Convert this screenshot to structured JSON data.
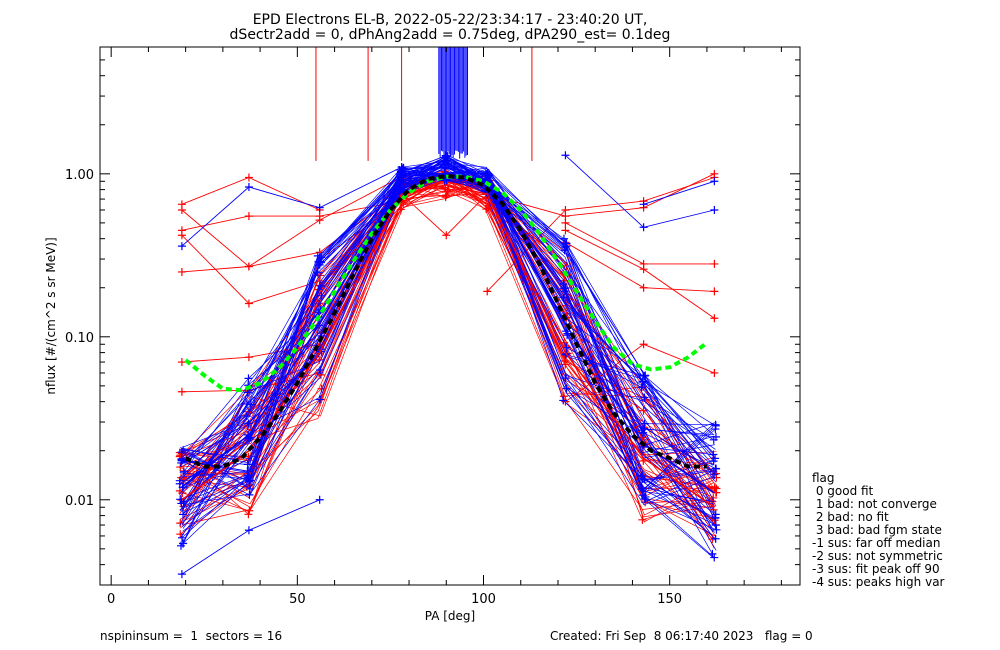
{
  "title_lines": [
    "EPD Electrons EL-B, 2022-05-22/23:34:17 - 23:40:20 UT,",
    "dSectr2add = 0, dPhAng2add = 0.75deg, dPA290_est=   0.1deg"
  ],
  "legend": {
    "title": "flag",
    "items": [
      " 0 good fit",
      " 1 bad: not converge",
      " 2 bad: no fit",
      " 3 bad: bad fgm state",
      "-1 sus: far off median",
      "-2 sus: not symmetric",
      "-3 sus: fit peak off 90",
      "-4 sus: peaks high var"
    ]
  },
  "footer": {
    "left": "nspininsum =  1  sectors = 16",
    "right": "Created: Fri Sep  8 06:17:40 2023   flag = 0"
  },
  "colors": {
    "red": "#ff0000",
    "blue": "#0000ff",
    "green": "#00ff00",
    "black": "#000000"
  },
  "chart_data": {
    "type": "line",
    "xlabel": "PA [deg]",
    "ylabel": "nflux [#/(cm^2 s sr MeV)]",
    "xlim": [
      -3,
      185
    ],
    "ylim": [
      0.003,
      6
    ],
    "yscale": "log",
    "xticks": [
      0,
      50,
      100,
      150
    ],
    "ytick_labels": [
      "0.01",
      "0.10",
      "1.00"
    ],
    "yticks": [
      0.01,
      0.1,
      1.0
    ],
    "pa_sectors": [
      19,
      37,
      56,
      78,
      90,
      101,
      122,
      143,
      162
    ],
    "series": [
      {
        "name_key": "median_blue",
        "color": "blue",
        "x": [
          19,
          37,
          56,
          78,
          90,
          101,
          122,
          143,
          162
        ],
        "y": [
          0.012,
          0.025,
          0.12,
          0.9,
          0.95,
          0.9,
          0.12,
          0.022,
          0.011
        ]
      },
      {
        "name_key": "median_red",
        "color": "red",
        "x": [
          19,
          37,
          56,
          78,
          90,
          101,
          122,
          143,
          162
        ],
        "y": [
          0.01,
          0.02,
          0.08,
          0.75,
          0.85,
          0.75,
          0.08,
          0.018,
          0.009
        ]
      },
      {
        "name_key": "fit_green",
        "color": "green",
        "style": "dashed",
        "x": [
          20,
          25,
          30,
          35,
          40,
          45,
          50,
          55,
          60,
          65,
          70,
          75,
          80,
          85,
          90,
          95,
          100,
          105,
          110,
          115,
          120,
          125,
          130,
          135,
          140,
          145,
          150,
          155,
          160
        ],
        "y": [
          0.072,
          0.058,
          0.048,
          0.047,
          0.052,
          0.064,
          0.086,
          0.125,
          0.19,
          0.29,
          0.43,
          0.6,
          0.77,
          0.9,
          0.96,
          0.96,
          0.9,
          0.77,
          0.6,
          0.43,
          0.29,
          0.19,
          0.125,
          0.086,
          0.068,
          0.063,
          0.065,
          0.075,
          0.092
        ]
      },
      {
        "name_key": "fit_black",
        "color": "black",
        "style": "dashed",
        "x": [
          20,
          25,
          30,
          35,
          40,
          45,
          50,
          55,
          60,
          65,
          70,
          75,
          80,
          85,
          90,
          95,
          100,
          105,
          110,
          115,
          120,
          125,
          130,
          135,
          140,
          145,
          150,
          155,
          160
        ],
        "y": [
          0.018,
          0.016,
          0.016,
          0.018,
          0.024,
          0.034,
          0.052,
          0.085,
          0.14,
          0.24,
          0.4,
          0.6,
          0.8,
          0.93,
          0.97,
          0.95,
          0.85,
          0.66,
          0.45,
          0.28,
          0.16,
          0.09,
          0.052,
          0.034,
          0.025,
          0.02,
          0.018,
          0.016,
          0.016
        ]
      }
    ],
    "spread": {
      "red": {
        "low": [
          0.006,
          0.008,
          0.03,
          0.6,
          0.7,
          0.6,
          0.03,
          0.007,
          0.005
        ],
        "high": [
          0.02,
          0.05,
          0.3,
          1.0,
          1.05,
          1.0,
          0.35,
          0.05,
          0.02
        ]
      },
      "blue": {
        "low": [
          0.005,
          0.01,
          0.04,
          0.75,
          0.9,
          0.75,
          0.04,
          0.009,
          0.004
        ],
        "high": [
          0.022,
          0.06,
          0.35,
          1.1,
          1.3,
          1.1,
          0.4,
          0.06,
          0.03
        ]
      }
    },
    "outliers_red": [
      [
        [
          19,
          0.65
        ],
        [
          37,
          0.95
        ],
        [
          56,
          0.6
        ]
      ],
      [
        [
          19,
          0.45
        ],
        [
          37,
          0.55
        ],
        [
          56,
          0.55
        ],
        [
          78,
          0.68
        ]
      ],
      [
        [
          19,
          0.25
        ],
        [
          37,
          0.27
        ],
        [
          56,
          0.33
        ],
        [
          78,
          0.78
        ]
      ],
      [
        [
          19,
          0.42
        ],
        [
          37,
          0.16
        ],
        [
          56,
          0.22
        ]
      ],
      [
        [
          19,
          0.6
        ],
        [
          37,
          0.27
        ],
        [
          56,
          0.52
        ],
        [
          78,
          0.96
        ]
      ],
      [
        [
          101,
          0.19
        ],
        [
          122,
          0.6
        ],
        [
          143,
          0.68
        ],
        [
          162,
          0.95
        ]
      ],
      [
        [
          122,
          0.5
        ],
        [
          143,
          0.28
        ],
        [
          162,
          0.28
        ]
      ],
      [
        [
          122,
          0.38
        ],
        [
          143,
          0.2
        ],
        [
          162,
          0.19
        ]
      ],
      [
        [
          122,
          0.45
        ],
        [
          143,
          0.26
        ],
        [
          162,
          0.13
        ]
      ],
      [
        [
          101,
          0.75
        ],
        [
          122,
          0.55
        ],
        [
          143,
          0.62
        ],
        [
          162,
          1.0
        ]
      ],
      [
        [
          19,
          0.046
        ],
        [
          37,
          0.047
        ],
        [
          56,
          0.06
        ]
      ],
      [
        [
          19,
          0.07
        ],
        [
          37,
          0.075
        ],
        [
          56,
          0.09
        ]
      ],
      [
        [
          122,
          0.04
        ],
        [
          143,
          0.09
        ],
        [
          162,
          0.06
        ]
      ],
      [
        [
          78,
          0.75
        ],
        [
          90,
          0.42
        ],
        [
          101,
          0.75
        ]
      ]
    ],
    "outliers_blue": [
      [
        [
          19,
          0.36
        ],
        [
          37,
          0.83
        ],
        [
          56,
          0.62
        ],
        [
          78,
          1.1
        ]
      ],
      [
        [
          122,
          1.3
        ],
        [
          143,
          0.47
        ],
        [
          162,
          0.6
        ]
      ],
      [
        [
          19,
          0.0035
        ],
        [
          37,
          0.0065
        ],
        [
          56,
          0.01
        ]
      ],
      [
        [
          143,
          0.65
        ],
        [
          162,
          0.9
        ]
      ]
    ],
    "spikes_red_x": [
      55,
      69,
      78,
      113
    ],
    "spikes_blue_x_range": [
      88,
      96
    ]
  }
}
